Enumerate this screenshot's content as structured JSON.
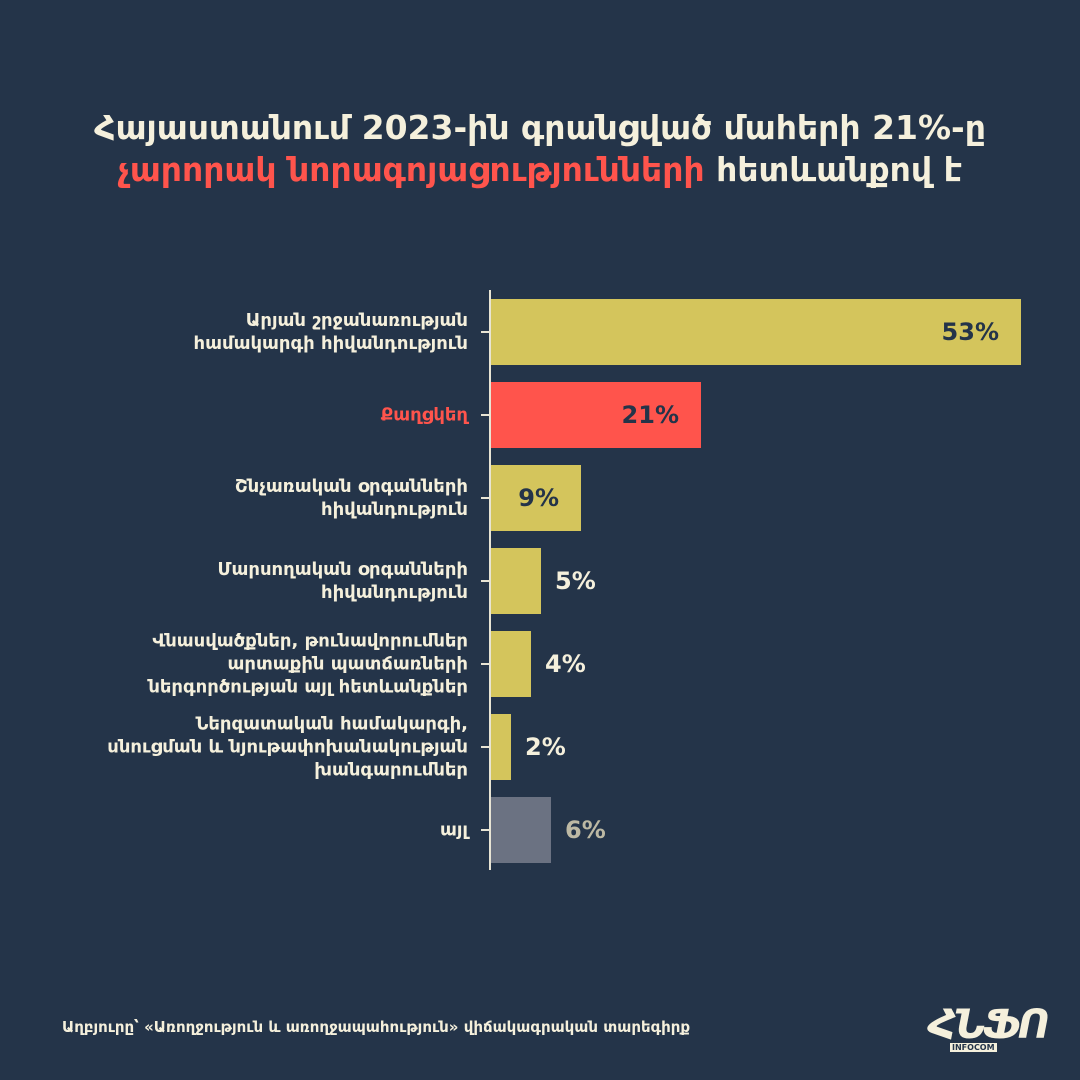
{
  "chart_data": {
    "type": "barh",
    "title": [
      "Հայաստանում 2023-ին գրանցված մահերի 21%-ը",
      "չարորակ նորագոյացությունների",
      " հետևանքով է"
    ],
    "categories": [
      "Արյան շրջանառության\nհամակարգի հիվանդություն",
      "Քաղցկեղ",
      "Շնչառական օրգանների\nհիվանդություն",
      "Մարսողական օրգանների\nհիվանդություն",
      "Վնասվածքներ, թունավորումներ\nարտաքին պատճառների\nներգործության այլ հետևանքներ",
      "Ներզատական համակարգի,\nսնուցման և նյութափոխանակության\nխանգարումներ",
      "այլ"
    ],
    "values": [
      53,
      21,
      9,
      5,
      4,
      2,
      6
    ],
    "value_labels": [
      "53%",
      "21%",
      "9%",
      "5%",
      "4%",
      "2%",
      "6%"
    ],
    "colors": [
      "#d4c55c",
      "#ff544c",
      "#d4c55c",
      "#d4c55c",
      "#d4c55c",
      "#d4c55c",
      "#6b7282"
    ],
    "label_colors": [
      "#f5f0dc",
      "#ff544c",
      "#f5f0dc",
      "#f5f0dc",
      "#f5f0dc",
      "#f5f0dc",
      "#f5f0dc"
    ],
    "xlim": [
      0,
      53
    ],
    "source": "Աղբյուրը՝ «Առողջություն և առողջապահություն» վիճակագրական տարեգիրք",
    "logo": {
      "mark": "ՀՆՖՈ",
      "sub": "INFOCOM"
    }
  }
}
